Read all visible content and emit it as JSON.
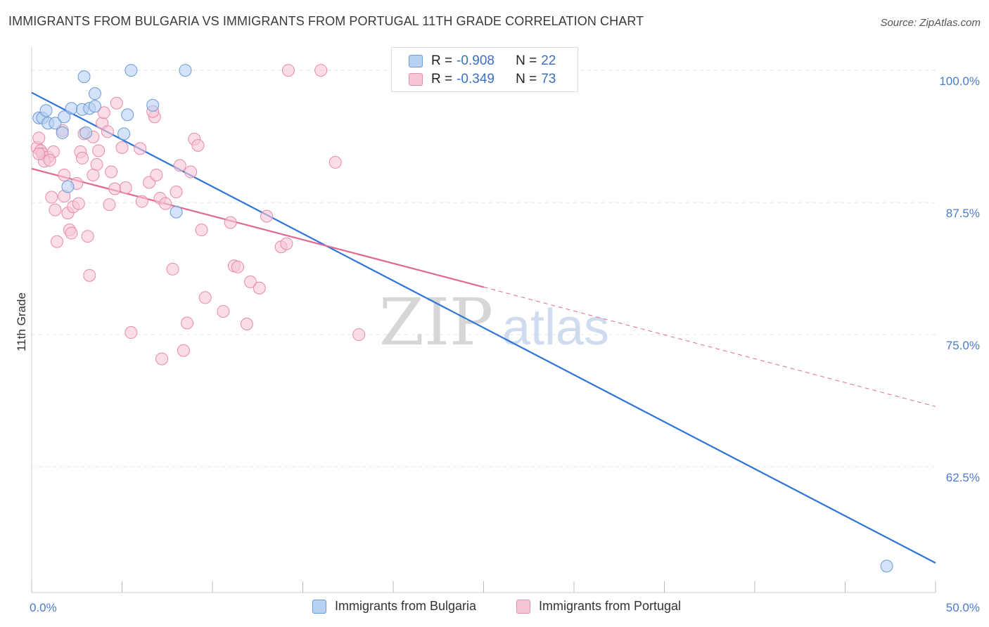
{
  "header": {
    "title": "IMMIGRANTS FROM BULGARIA VS IMMIGRANTS FROM PORTUGAL 11TH GRADE CORRELATION CHART",
    "source": "Source: ZipAtlas.com"
  },
  "legend": {
    "r_label": "R =",
    "n_label": "N =",
    "rows": [
      {
        "r": "-0.908",
        "n": "22"
      },
      {
        "r": "-0.349",
        "n": "73"
      }
    ]
  },
  "watermark": {
    "zip": "ZIP",
    "atlas": "atlas"
  },
  "colors": {
    "bulgaria_fill": "#b8d0f2",
    "bulgaria_stroke": "#6a9ad8",
    "bulgaria_line": "#2e74d6",
    "portugal_fill": "#f7c6d5",
    "portugal_stroke": "#e88aa8",
    "portugal_line": "#e06890",
    "axis_text": "#4a7cc9",
    "grid": "#e4e4e4"
  },
  "chart_data": {
    "type": "scatter",
    "title": "IMMIGRANTS FROM BULGARIA VS IMMIGRANTS FROM PORTUGAL 11TH GRADE CORRELATION CHART",
    "xlabel": "",
    "ylabel": "11th Grade",
    "xlim": [
      0,
      50
    ],
    "ylim": [
      50.6,
      102.2
    ],
    "x_tick_labels": [
      "0.0%",
      "50.0%"
    ],
    "y_ticks": [
      62.5,
      75.0,
      87.5,
      100.0
    ],
    "y_tick_labels": [
      "62.5%",
      "75.0%",
      "87.5%",
      "100.0%"
    ],
    "series": [
      {
        "name": "Immigrants from Bulgaria",
        "points": [
          [
            0.4,
            95.5
          ],
          [
            0.6,
            95.5
          ],
          [
            0.8,
            96.2
          ],
          [
            0.9,
            95.0
          ],
          [
            1.3,
            95.0
          ],
          [
            1.7,
            94.1
          ],
          [
            1.8,
            95.6
          ],
          [
            2.0,
            89.0
          ],
          [
            2.2,
            96.4
          ],
          [
            2.8,
            96.3
          ],
          [
            3.0,
            94.1
          ],
          [
            3.2,
            96.4
          ],
          [
            2.9,
            99.4
          ],
          [
            3.5,
            96.6
          ],
          [
            3.5,
            97.8
          ],
          [
            5.1,
            94.0
          ],
          [
            5.3,
            95.8
          ],
          [
            5.5,
            100.0
          ],
          [
            6.7,
            96.7
          ],
          [
            8.0,
            86.6
          ],
          [
            8.5,
            100.0
          ],
          [
            47.3,
            53.1
          ]
        ],
        "trendline": {
          "x": [
            0,
            50
          ],
          "y": [
            97.9,
            53.4
          ]
        }
      },
      {
        "name": "Immigrants from Portugal",
        "points": [
          [
            0.3,
            92.7
          ],
          [
            0.4,
            93.6
          ],
          [
            0.5,
            92.4
          ],
          [
            0.6,
            92.1
          ],
          [
            0.9,
            91.8
          ],
          [
            0.7,
            91.4
          ],
          [
            1.2,
            92.3
          ],
          [
            1.3,
            86.8
          ],
          [
            1.1,
            88.0
          ],
          [
            1.4,
            83.8
          ],
          [
            1.7,
            94.3
          ],
          [
            1.8,
            88.1
          ],
          [
            1.8,
            90.1
          ],
          [
            2.0,
            86.5
          ],
          [
            2.1,
            84.9
          ],
          [
            2.2,
            84.6
          ],
          [
            2.3,
            87.1
          ],
          [
            2.5,
            89.3
          ],
          [
            2.6,
            87.4
          ],
          [
            2.7,
            92.3
          ],
          [
            2.8,
            91.7
          ],
          [
            2.9,
            94.0
          ],
          [
            3.1,
            84.3
          ],
          [
            3.2,
            80.6
          ],
          [
            3.4,
            93.7
          ],
          [
            3.4,
            90.1
          ],
          [
            3.6,
            91.1
          ],
          [
            3.7,
            92.4
          ],
          [
            3.9,
            95.0
          ],
          [
            4.0,
            96.0
          ],
          [
            4.3,
            87.3
          ],
          [
            4.2,
            94.2
          ],
          [
            4.4,
            90.4
          ],
          [
            4.6,
            88.8
          ],
          [
            4.7,
            96.9
          ],
          [
            5.0,
            92.7
          ],
          [
            5.2,
            88.9
          ],
          [
            5.5,
            75.2
          ],
          [
            6.0,
            92.6
          ],
          [
            6.1,
            87.6
          ],
          [
            6.5,
            89.4
          ],
          [
            6.8,
            95.6
          ],
          [
            6.7,
            96.1
          ],
          [
            6.9,
            90.1
          ],
          [
            7.1,
            87.9
          ],
          [
            7.2,
            72.7
          ],
          [
            7.4,
            87.4
          ],
          [
            7.8,
            81.2
          ],
          [
            8.0,
            88.5
          ],
          [
            8.2,
            91.0
          ],
          [
            8.4,
            73.5
          ],
          [
            8.6,
            76.1
          ],
          [
            8.8,
            90.4
          ],
          [
            9.0,
            93.5
          ],
          [
            9.2,
            92.9
          ],
          [
            9.4,
            84.9
          ],
          [
            9.6,
            78.5
          ],
          [
            10.6,
            77.2
          ],
          [
            11.0,
            85.6
          ],
          [
            11.2,
            81.5
          ],
          [
            11.4,
            81.4
          ],
          [
            11.9,
            76.0
          ],
          [
            12.1,
            80.0
          ],
          [
            12.6,
            79.4
          ],
          [
            13.0,
            86.2
          ],
          [
            13.8,
            83.3
          ],
          [
            14.1,
            83.6
          ],
          [
            14.2,
            100.0
          ],
          [
            16.0,
            100.0
          ],
          [
            16.8,
            91.3
          ],
          [
            18.1,
            75.0
          ],
          [
            0.4,
            92.1
          ],
          [
            1.0,
            91.5
          ]
        ],
        "trendline": {
          "x": [
            0,
            25
          ],
          "y": [
            90.7,
            79.5
          ]
        },
        "trendline_extension": {
          "x": [
            25,
            50
          ],
          "y": [
            79.5,
            68.2
          ]
        }
      }
    ]
  }
}
